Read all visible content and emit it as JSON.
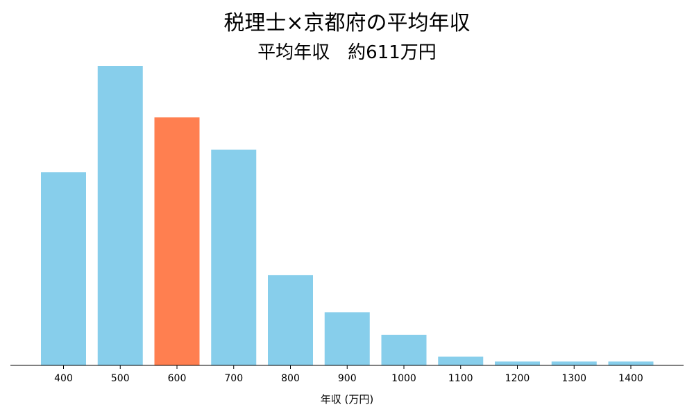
{
  "chart_data": {
    "type": "bar",
    "title": "税理士×京都府の平均年収",
    "subtitle": "平均年収　約611万円",
    "xlabel": "年収 (万円)",
    "ylabel": "",
    "categories": [
      "400",
      "500",
      "600",
      "700",
      "800",
      "900",
      "1000",
      "1100",
      "1200",
      "1300",
      "1400"
    ],
    "values": [
      0.6,
      0.93,
      0.77,
      0.67,
      0.28,
      0.165,
      0.095,
      0.027,
      0.012,
      0.012,
      0.012
    ],
    "highlight_category": "600",
    "ylim": [
      0,
      1.0
    ],
    "grid": false,
    "colors": {
      "bar": "#87CEEB",
      "highlight": "#FF7F50",
      "axis": "#000000"
    }
  }
}
